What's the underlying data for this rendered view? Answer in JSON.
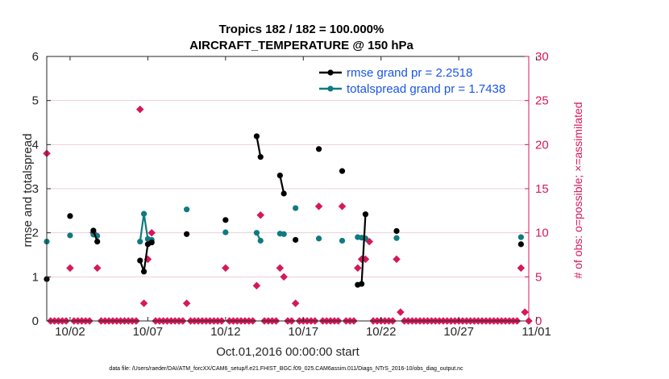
{
  "chart_data": {
    "type": "line",
    "title": "Tropics 182 / 182 = 100.000%",
    "subtitle": "AIRCRAFT_TEMPERATURE @ 150 hPa",
    "xlabel": "Oct.01,2016 00:00:00 start",
    "ylabel": "rmse and totalspread",
    "y2label": "# of obs: o=possible; ×=assimilated",
    "footnote": "data file: /Users/raeder/DAI/ATM_forcXX/CAM6_setup/f.e21.FHIST_BGC.f09_025.CAM6assim.011/Diags_NTrS_2016-10/obs_diag_output.nc",
    "xlim": [
      0.5,
      31.5
    ],
    "ylim": [
      0,
      6
    ],
    "y2lim": [
      0,
      30
    ],
    "xticks": [
      2,
      7,
      12,
      17,
      22,
      27,
      32
    ],
    "xticklabels": [
      "10/02",
      "10/07",
      "10/12",
      "10/17",
      "10/22",
      "10/27",
      "11/01"
    ],
    "yticks": [
      0,
      1,
      2,
      3,
      4,
      5,
      6
    ],
    "y2ticks": [
      0,
      5,
      10,
      15,
      20,
      25,
      30
    ],
    "grid": "y-right",
    "legend_position": "top-right",
    "colors": {
      "rmse": "#000000",
      "spread": "#0f7b80",
      "obs": "#d6185b",
      "axis": "#262626",
      "legend_text": "#1a55e6",
      "grid": "#e8c6d3"
    },
    "series": [
      {
        "name": "rmse grand pr = 2.2518",
        "color": "#000000",
        "segments": [
          [
            [
              0.5,
              0.95
            ]
          ],
          [
            [
              2.0,
              2.38
            ]
          ],
          [
            [
              3.5,
              2.05
            ],
            [
              3.75,
              1.8
            ]
          ],
          [
            [
              6.5,
              1.37
            ],
            [
              6.75,
              1.12
            ],
            [
              7.0,
              1.74
            ],
            [
              7.25,
              1.78
            ]
          ],
          [
            [
              9.5,
              1.97
            ]
          ],
          [
            [
              12.0,
              2.29
            ]
          ],
          [
            [
              14.0,
              4.19
            ],
            [
              14.25,
              3.72
            ]
          ],
          [
            [
              15.5,
              3.3
            ],
            [
              15.75,
              2.89
            ]
          ],
          [
            [
              16.5,
              1.84
            ]
          ],
          [
            [
              18.0,
              3.9
            ]
          ],
          [
            [
              19.5,
              3.4
            ]
          ],
          [
            [
              20.5,
              0.82
            ],
            [
              20.75,
              0.84
            ],
            [
              21.0,
              2.42
            ]
          ],
          [
            [
              23.0,
              2.04
            ]
          ],
          [
            [
              31.0,
              1.74
            ]
          ]
        ]
      },
      {
        "name": "totalspread grand pr = 1.7438",
        "color": "#0f7b80",
        "segments": [
          [
            [
              0.5,
              1.8
            ]
          ],
          [
            [
              2.0,
              1.94
            ]
          ],
          [
            [
              3.5,
              1.96
            ],
            [
              3.75,
              1.93
            ]
          ],
          [
            [
              6.5,
              1.8
            ],
            [
              6.75,
              2.43
            ],
            [
              7.0,
              1.86
            ],
            [
              7.25,
              1.84
            ]
          ],
          [
            [
              9.5,
              2.53
            ]
          ],
          [
            [
              12.0,
              2.01
            ]
          ],
          [
            [
              14.0,
              2.0
            ],
            [
              14.25,
              1.82
            ]
          ],
          [
            [
              15.5,
              1.98
            ],
            [
              15.75,
              1.97
            ]
          ],
          [
            [
              16.5,
              2.56
            ]
          ],
          [
            [
              18.0,
              1.87
            ]
          ],
          [
            [
              19.5,
              1.82
            ]
          ],
          [
            [
              20.5,
              1.9
            ],
            [
              20.75,
              1.89
            ],
            [
              21.0,
              1.87
            ]
          ],
          [
            [
              23.0,
              1.88
            ]
          ],
          [
            [
              31.0,
              1.9
            ]
          ]
        ]
      }
    ],
    "obs_counts": {
      "name": "# of obs",
      "color": "#d6185b",
      "points": [
        [
          0.5,
          19
        ],
        [
          2.0,
          6
        ],
        [
          3.5,
          10
        ],
        [
          3.75,
          6
        ],
        [
          6.5,
          24
        ],
        [
          6.75,
          2
        ],
        [
          7.0,
          7
        ],
        [
          7.25,
          10
        ],
        [
          9.5,
          2
        ],
        [
          12.0,
          6
        ],
        [
          14.0,
          4
        ],
        [
          14.25,
          12
        ],
        [
          15.5,
          6
        ],
        [
          15.75,
          5
        ],
        [
          16.5,
          2
        ],
        [
          18.0,
          13
        ],
        [
          19.5,
          13
        ],
        [
          20.5,
          6
        ],
        [
          20.75,
          7
        ],
        [
          21.0,
          7
        ],
        [
          21.25,
          9
        ],
        [
          23.0,
          7
        ],
        [
          23.25,
          1
        ],
        [
          31.0,
          6
        ],
        [
          31.25,
          1
        ]
      ],
      "zero_times": [
        0.75,
        1.0,
        1.25,
        1.5,
        1.75,
        2.25,
        2.5,
        2.75,
        3.0,
        3.25,
        4.0,
        4.25,
        4.5,
        4.75,
        5.0,
        5.25,
        5.5,
        5.75,
        6.0,
        6.25,
        7.5,
        7.75,
        8.0,
        8.25,
        8.5,
        8.75,
        9.0,
        9.25,
        9.75,
        10.0,
        10.25,
        10.5,
        10.75,
        11.0,
        11.25,
        11.5,
        11.75,
        12.25,
        12.5,
        12.75,
        13.0,
        13.25,
        13.5,
        13.75,
        14.5,
        14.75,
        15.0,
        15.25,
        16.0,
        16.25,
        16.75,
        17.0,
        17.25,
        17.5,
        17.75,
        18.25,
        18.5,
        18.75,
        19.0,
        19.25,
        19.75,
        20.0,
        20.25,
        21.5,
        21.75,
        22.0,
        22.25,
        22.5,
        22.75,
        23.5,
        23.75,
        24.0,
        24.25,
        24.5,
        24.75,
        25.0,
        25.25,
        25.5,
        25.75,
        26.0,
        26.25,
        26.5,
        26.75,
        27.0,
        27.25,
        27.5,
        27.75,
        28.0,
        28.25,
        28.5,
        28.75,
        29.0,
        29.25,
        29.5,
        29.75,
        30.0,
        30.25,
        30.5,
        30.75,
        31.5
      ]
    }
  }
}
